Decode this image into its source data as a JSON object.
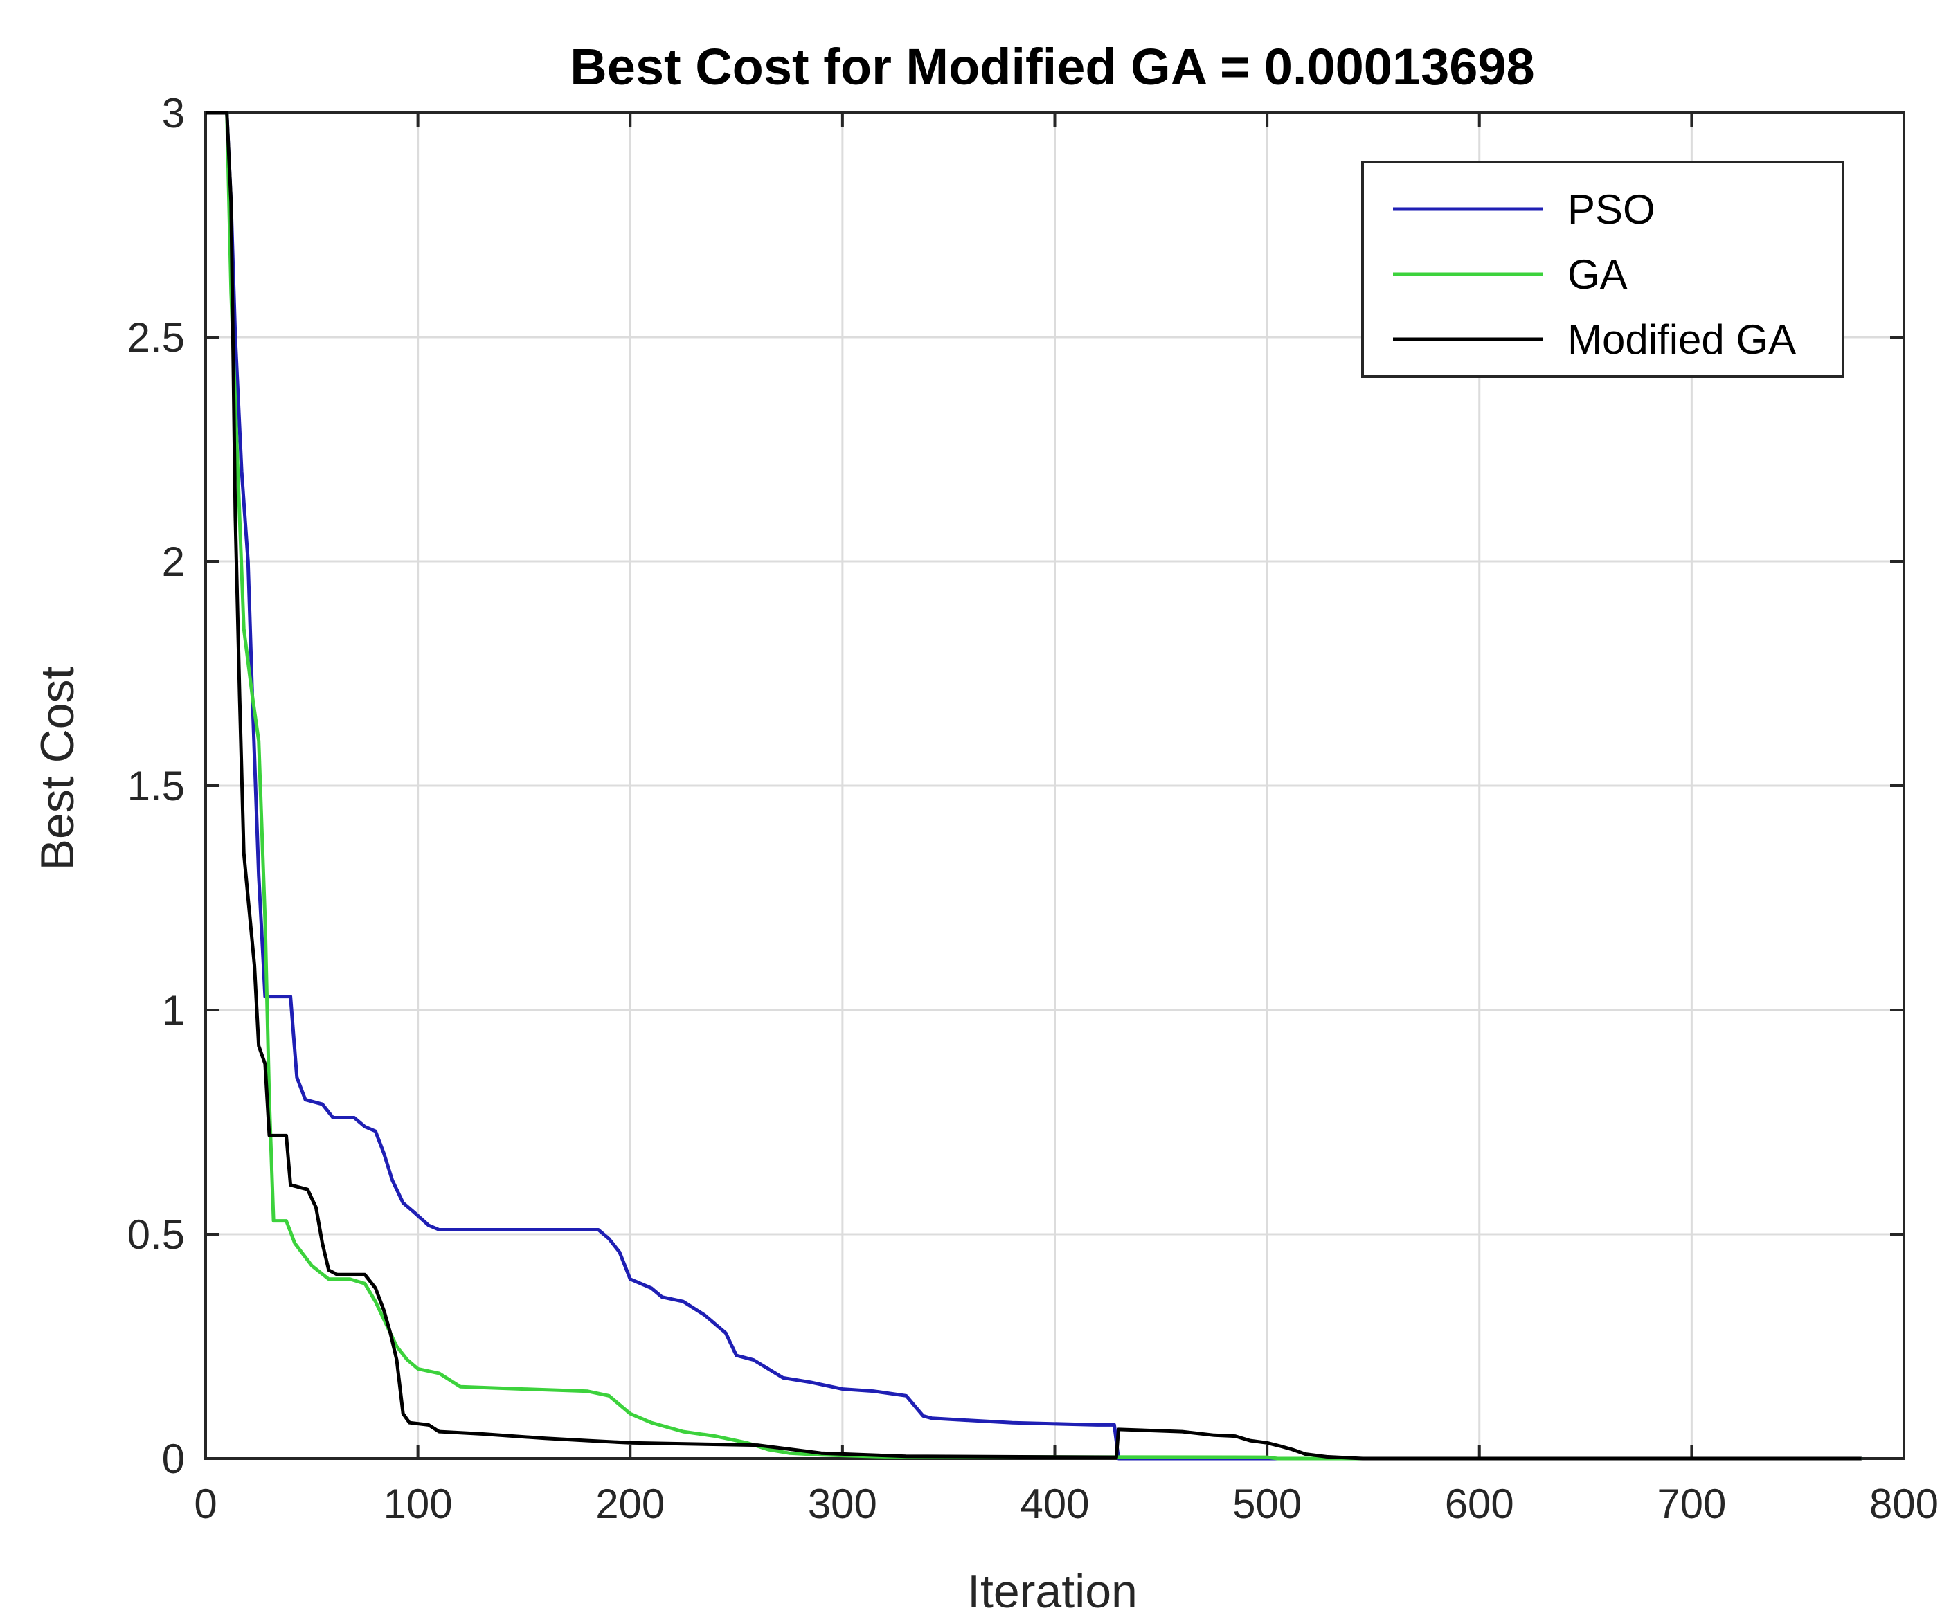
{
  "chart_data": {
    "type": "line",
    "title": "Best Cost for Modified GA = 0.00013698",
    "xlabel": "Iteration",
    "ylabel": "Best Cost",
    "xlim": [
      0,
      800
    ],
    "ylim": [
      0,
      3
    ],
    "xticks": [
      0,
      100,
      200,
      300,
      400,
      500,
      600,
      700,
      800
    ],
    "yticks": [
      0,
      0.5,
      1,
      1.5,
      2,
      2.5,
      3
    ],
    "x_tick_labels": [
      "0",
      "100",
      "200",
      "300",
      "400",
      "500",
      "600",
      "700",
      "800"
    ],
    "y_tick_labels": [
      "0",
      "0.5",
      "1",
      "1.5",
      "2",
      "2.5",
      "3"
    ],
    "grid": true,
    "legend_position": "top-right",
    "series": [
      {
        "name": "PSO",
        "color": "#1f1fb4",
        "points": [
          [
            0,
            3
          ],
          [
            10,
            3
          ],
          [
            12,
            2.8
          ],
          [
            14,
            2.5
          ],
          [
            17,
            2.2
          ],
          [
            20,
            2.0
          ],
          [
            22,
            1.7
          ],
          [
            25,
            1.3
          ],
          [
            28,
            1.03
          ],
          [
            40,
            1.03
          ],
          [
            43,
            0.85
          ],
          [
            47,
            0.8
          ],
          [
            55,
            0.79
          ],
          [
            60,
            0.76
          ],
          [
            70,
            0.76
          ],
          [
            75,
            0.74
          ],
          [
            80,
            0.73
          ],
          [
            84,
            0.68
          ],
          [
            88,
            0.62
          ],
          [
            93,
            0.57
          ],
          [
            98,
            0.55
          ],
          [
            105,
            0.52
          ],
          [
            110,
            0.51
          ],
          [
            185,
            0.51
          ],
          [
            190,
            0.49
          ],
          [
            195,
            0.46
          ],
          [
            200,
            0.4
          ],
          [
            205,
            0.39
          ],
          [
            210,
            0.38
          ],
          [
            215,
            0.36
          ],
          [
            225,
            0.35
          ],
          [
            235,
            0.32
          ],
          [
            245,
            0.28
          ],
          [
            250,
            0.23
          ],
          [
            258,
            0.22
          ],
          [
            265,
            0.2
          ],
          [
            272,
            0.18
          ],
          [
            285,
            0.17
          ],
          [
            300,
            0.155
          ],
          [
            315,
            0.15
          ],
          [
            330,
            0.14
          ],
          [
            338,
            0.095
          ],
          [
            342,
            0.09
          ],
          [
            360,
            0.085
          ],
          [
            380,
            0.08
          ],
          [
            420,
            0.075
          ],
          [
            428,
            0.075
          ],
          [
            430,
            0.0
          ],
          [
            780,
            0.0
          ]
        ]
      },
      {
        "name": "GA",
        "color": "#3cd23c",
        "points": [
          [
            0,
            3
          ],
          [
            10,
            3
          ],
          [
            12,
            2.6
          ],
          [
            16,
            2.1
          ],
          [
            18,
            1.85
          ],
          [
            22,
            1.7
          ],
          [
            25,
            1.6
          ],
          [
            28,
            1.2
          ],
          [
            30,
            0.8
          ],
          [
            32,
            0.53
          ],
          [
            38,
            0.53
          ],
          [
            42,
            0.48
          ],
          [
            50,
            0.43
          ],
          [
            58,
            0.4
          ],
          [
            68,
            0.4
          ],
          [
            75,
            0.39
          ],
          [
            80,
            0.35
          ],
          [
            85,
            0.3
          ],
          [
            90,
            0.25
          ],
          [
            95,
            0.22
          ],
          [
            100,
            0.2
          ],
          [
            110,
            0.19
          ],
          [
            120,
            0.16
          ],
          [
            150,
            0.155
          ],
          [
            180,
            0.15
          ],
          [
            190,
            0.14
          ],
          [
            195,
            0.12
          ],
          [
            200,
            0.1
          ],
          [
            210,
            0.08
          ],
          [
            225,
            0.06
          ],
          [
            240,
            0.05
          ],
          [
            255,
            0.035
          ],
          [
            265,
            0.02
          ],
          [
            275,
            0.012
          ],
          [
            290,
            0.008
          ],
          [
            320,
            0.004
          ],
          [
            500,
            0.003
          ],
          [
            505,
            0.0
          ],
          [
            780,
            0.0
          ]
        ]
      },
      {
        "name": "Modified GA",
        "color": "#000000",
        "points": [
          [
            0,
            3
          ],
          [
            10,
            3
          ],
          [
            12,
            2.8
          ],
          [
            14,
            2.1
          ],
          [
            16,
            1.7
          ],
          [
            18,
            1.35
          ],
          [
            20,
            1.25
          ],
          [
            23,
            1.1
          ],
          [
            25,
            0.92
          ],
          [
            28,
            0.88
          ],
          [
            30,
            0.72
          ],
          [
            38,
            0.72
          ],
          [
            40,
            0.61
          ],
          [
            48,
            0.6
          ],
          [
            52,
            0.56
          ],
          [
            55,
            0.48
          ],
          [
            58,
            0.42
          ],
          [
            62,
            0.41
          ],
          [
            75,
            0.41
          ],
          [
            80,
            0.38
          ],
          [
            84,
            0.33
          ],
          [
            87,
            0.28
          ],
          [
            90,
            0.22
          ],
          [
            93,
            0.1
          ],
          [
            96,
            0.08
          ],
          [
            105,
            0.075
          ],
          [
            110,
            0.06
          ],
          [
            130,
            0.055
          ],
          [
            160,
            0.045
          ],
          [
            180,
            0.04
          ],
          [
            200,
            0.035
          ],
          [
            260,
            0.03
          ],
          [
            290,
            0.012
          ],
          [
            330,
            0.005
          ],
          [
            429,
            0.003
          ],
          [
            430,
            0.065
          ],
          [
            460,
            0.06
          ],
          [
            475,
            0.052
          ],
          [
            485,
            0.05
          ],
          [
            492,
            0.04
          ],
          [
            500,
            0.035
          ],
          [
            506,
            0.028
          ],
          [
            512,
            0.02
          ],
          [
            518,
            0.01
          ],
          [
            528,
            0.004
          ],
          [
            545,
            0.0
          ],
          [
            780,
            0.0
          ]
        ]
      }
    ]
  }
}
